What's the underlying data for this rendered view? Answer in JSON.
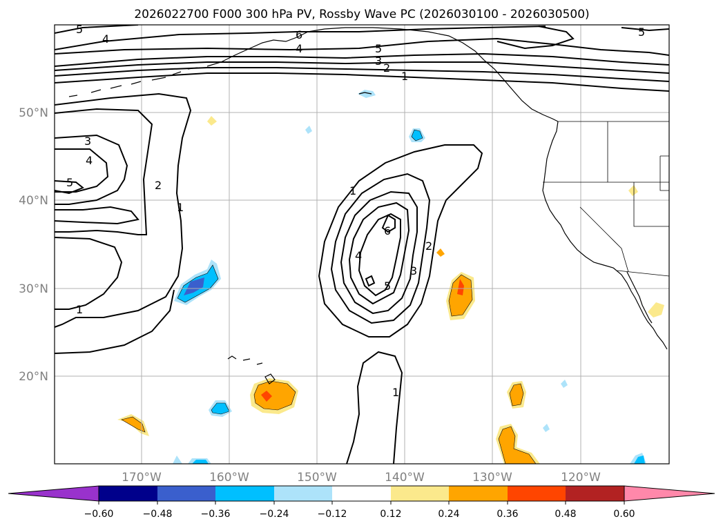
{
  "title": "2026022700 F000 300 hPa PV, Rossby Wave PC (2026030100 - 2026030500)",
  "latitude_labels": [
    "50°N",
    "40°N",
    "30°N",
    "20°N"
  ],
  "longitude_labels": [
    "170°W",
    "160°W",
    "150°W",
    "140°W",
    "130°W",
    "120°W"
  ],
  "colorbar": {
    "ticks": [
      "−0.60",
      "−0.48",
      "−0.36",
      "−0.24",
      "−0.12",
      "0.12",
      "0.24",
      "0.36",
      "0.48",
      "0.60"
    ],
    "colors": {
      "under": "#9932cc",
      "c1": "#00008b",
      "c2": "#3a5fcd",
      "c3": "#00bfff",
      "c4": "#ade3fa",
      "c5": "#ffffff",
      "c6": "#fbe98c",
      "c7": "#ffa500",
      "c8": "#ff4500",
      "c9": "#b22222",
      "over": "#ff88aa"
    }
  },
  "contour_labels": {
    "west_top_5": "5",
    "west_top_4": "4",
    "north_6": "6",
    "north_4": "4",
    "north_5": "5",
    "north_3": "3",
    "north_2": "2",
    "north_1": "1",
    "ne_5": "5",
    "west_3": "3",
    "west_4": "4",
    "west_5": "5",
    "west_2": "2",
    "west_1": "1",
    "sw_1": "1",
    "center_1": "1",
    "center_6": "6",
    "center_4": "4",
    "center_5": "5",
    "center_3": "3",
    "center_2": "2",
    "south_1": "1"
  }
}
